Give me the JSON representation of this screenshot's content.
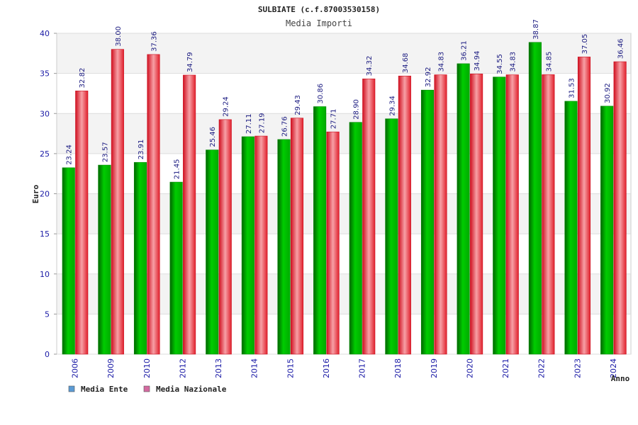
{
  "chart_data": {
    "type": "bar",
    "title": "SULBIATE (c.f.87003530158)",
    "subtitle": "Media Importi",
    "xlabel": "Anno",
    "ylabel": "Euro",
    "ylim": [
      0,
      40
    ],
    "yticks": [
      0,
      5,
      10,
      15,
      20,
      25,
      30,
      35,
      40
    ],
    "grid": true,
    "legend_position": "bottom-left",
    "categories": [
      "2006",
      "2009",
      "2010",
      "2012",
      "2013",
      "2014",
      "2015",
      "2016",
      "2017",
      "2018",
      "2019",
      "2020",
      "2021",
      "2022",
      "2023",
      "2024"
    ],
    "series": [
      {
        "name": "Media Ente",
        "color": "#00b000",
        "values": [
          23.24,
          23.57,
          23.91,
          21.45,
          25.46,
          27.11,
          26.76,
          30.86,
          28.9,
          29.34,
          32.92,
          36.21,
          34.55,
          38.87,
          31.53,
          30.92
        ],
        "labels": [
          "23.24",
          "23.57",
          "23.91",
          "21.45",
          "25.46",
          "27.11",
          "26.76",
          "30.86",
          "28.90",
          "29.34",
          "32.92",
          "36.21",
          "34.55",
          "38.87",
          "31.53",
          "30.92"
        ]
      },
      {
        "name": "Media Nazionale",
        "color": "#e8202a",
        "values": [
          32.82,
          38.0,
          37.36,
          34.79,
          29.24,
          27.19,
          29.43,
          27.71,
          34.32,
          34.68,
          34.83,
          34.94,
          34.83,
          34.85,
          37.05,
          36.46
        ],
        "labels": [
          "32.82",
          "38.00",
          "37.36",
          "34.79",
          "29.24",
          "27.19",
          "29.43",
          "27.71",
          "34.32",
          "34.68",
          "34.83",
          "34.94",
          "34.83",
          "34.85",
          "37.05",
          "36.46"
        ]
      }
    ],
    "legend": [
      {
        "name": "Media Ente",
        "color": "#5b9bd5"
      },
      {
        "name": "Media Nazionale",
        "color": "#d46aa0"
      }
    ]
  }
}
